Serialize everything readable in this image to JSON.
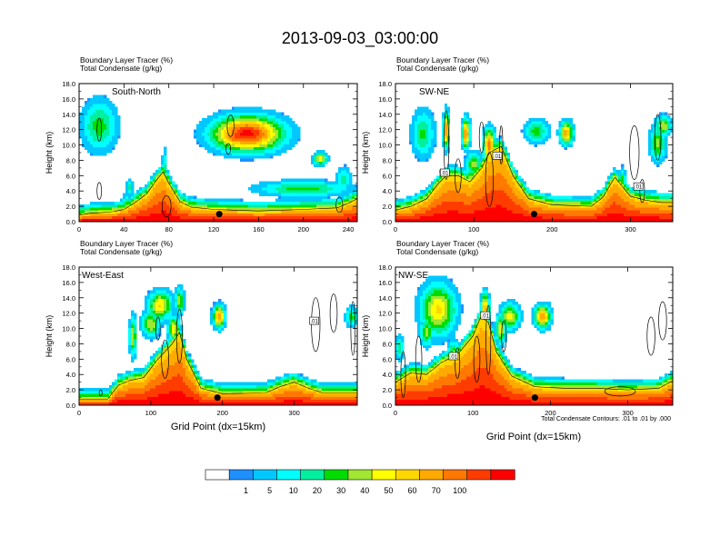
{
  "title": "2013-09-03_03:00:00",
  "variables": {
    "shaded": "Boundary Layer Tracer",
    "shaded_units": "(%)",
    "contour": "Total Condensate",
    "contour_units": "(g/kg)"
  },
  "ylabel": "Height (km)",
  "xlabel": "Grid Point (dx=15km)",
  "contour_info": "Total Condensate Contours: .01 to .01 by .000",
  "contour_label": ".01",
  "y_ticks": [
    "0.0",
    "2.0",
    "4.0",
    "6.0",
    "8.0",
    "10.0",
    "12.0",
    "14.0",
    "16.0",
    "18.0"
  ],
  "chart_data": [
    {
      "type": "heatmap",
      "panel": "South-North",
      "x_ticks": [
        0,
        40,
        80,
        120,
        160,
        200,
        240
      ],
      "xlim": [
        0,
        248
      ],
      "ylim": [
        0,
        18
      ],
      "bl": [
        [
          0,
          0.8
        ],
        [
          10,
          1.1
        ],
        [
          20,
          1.2
        ],
        [
          30,
          1.3
        ],
        [
          40,
          1.6
        ],
        [
          50,
          2.5
        ],
        [
          60,
          3.6
        ],
        [
          70,
          5.6
        ],
        [
          75,
          6.5
        ],
        [
          80,
          5.0
        ],
        [
          90,
          2.6
        ],
        [
          100,
          1.9
        ],
        [
          120,
          1.6
        ],
        [
          160,
          1.4
        ],
        [
          200,
          1.6
        ],
        [
          230,
          1.8
        ],
        [
          240,
          2.4
        ],
        [
          248,
          3.0
        ]
      ],
      "blobs": [
        [
          18,
          15,
          12.5,
          3.2,
          0.38
        ],
        [
          45,
          3,
          4.5,
          1.0,
          0.3
        ],
        [
          42,
          3,
          2.5,
          1.2,
          0.3
        ],
        [
          76,
          2,
          6.6,
          2.8,
          0.3
        ],
        [
          150,
          30,
          11.5,
          2.2,
          0.95
        ],
        [
          140,
          16,
          11.0,
          1.2,
          0.85
        ],
        [
          215,
          6,
          8.2,
          0.8,
          0.55
        ],
        [
          200,
          40,
          4.3,
          1.0,
          0.38
        ],
        [
          236,
          6,
          5.5,
          1.6,
          0.3
        ]
      ],
      "contours": [
        [
          18,
          12,
          2,
          1.5
        ],
        [
          135,
          12.5,
          3,
          1.4
        ],
        [
          133,
          9.5,
          2,
          0.7
        ],
        [
          18,
          4.0,
          2,
          1.1
        ],
        [
          78,
          2.0,
          4,
          1.4
        ],
        [
          232,
          2.2,
          3,
          1.0
        ]
      ],
      "boxes": [],
      "dot": [
        125,
        1.0
      ]
    },
    {
      "type": "heatmap",
      "panel": "SW-NE",
      "x_ticks": [
        0,
        100,
        200,
        300
      ],
      "xlim": [
        0,
        354
      ],
      "ylim": [
        0,
        18
      ],
      "bl": [
        [
          0,
          1.5
        ],
        [
          20,
          2.0
        ],
        [
          40,
          3.0
        ],
        [
          55,
          5.0
        ],
        [
          65,
          6.0
        ],
        [
          80,
          6.0
        ],
        [
          95,
          5.2
        ],
        [
          110,
          7.0
        ],
        [
          120,
          9.0
        ],
        [
          135,
          9.8
        ],
        [
          150,
          6.0
        ],
        [
          170,
          3.0
        ],
        [
          200,
          2.2
        ],
        [
          250,
          2.0
        ],
        [
          265,
          3.2
        ],
        [
          280,
          5.8
        ],
        [
          300,
          3.3
        ],
        [
          320,
          2.8
        ],
        [
          340,
          2.5
        ],
        [
          354,
          2.5
        ]
      ],
      "blobs": [
        [
          35,
          14,
          11.5,
          3.0,
          0.35
        ],
        [
          65,
          4,
          12.0,
          2.2,
          0.75
        ],
        [
          90,
          5,
          11.5,
          1.8,
          0.8
        ],
        [
          120,
          7,
          10.0,
          2.0,
          0.8
        ],
        [
          102,
          20,
          5.0,
          1.8,
          0.6
        ],
        [
          100,
          10,
          7.5,
          1.5,
          0.45
        ],
        [
          218,
          8,
          11.6,
          1.4,
          0.7
        ],
        [
          180,
          15,
          11.8,
          1.5,
          0.38
        ],
        [
          335,
          10,
          10.2,
          2.2,
          0.45
        ],
        [
          342,
          10,
          12.5,
          1.2,
          0.5
        ],
        [
          290,
          4,
          5.5,
          1.5,
          0.35
        ]
      ],
      "contours": [
        [
          65,
          10.0,
          3,
          4.5
        ],
        [
          80,
          6.0,
          4,
          2.2
        ],
        [
          120,
          5.5,
          5,
          3.5
        ],
        [
          135,
          10.0,
          2,
          2.5
        ],
        [
          110,
          11.0,
          3,
          2.0
        ],
        [
          305,
          9.0,
          6,
          3.5
        ],
        [
          335,
          11.0,
          4,
          3.0
        ],
        [
          315,
          4.0,
          3,
          1.5
        ]
      ],
      "boxes": [
        [
          63,
          6.4
        ],
        [
          130,
          8.6
        ],
        [
          310,
          4.6
        ]
      ],
      "dot": [
        177,
        1.0
      ]
    },
    {
      "type": "heatmap",
      "panel": "West-East",
      "x_ticks": [
        0,
        100,
        200,
        300
      ],
      "xlim": [
        0,
        388
      ],
      "ylim": [
        0,
        18
      ],
      "bl": [
        [
          0,
          0.8
        ],
        [
          40,
          0.8
        ],
        [
          55,
          2.6
        ],
        [
          70,
          3.2
        ],
        [
          90,
          3.6
        ],
        [
          110,
          6.0
        ],
        [
          130,
          8.0
        ],
        [
          140,
          9.5
        ],
        [
          150,
          6.0
        ],
        [
          170,
          2.2
        ],
        [
          200,
          1.5
        ],
        [
          260,
          1.6
        ],
        [
          280,
          2.4
        ],
        [
          300,
          3.0
        ],
        [
          320,
          2.2
        ],
        [
          340,
          1.6
        ],
        [
          388,
          1.6
        ]
      ],
      "blobs": [
        [
          113,
          16,
          13.0,
          1.8,
          0.6
        ],
        [
          140,
          6,
          13.6,
          1.6,
          0.5
        ],
        [
          100,
          12,
          10.6,
          1.6,
          0.5
        ],
        [
          75,
          5,
          9.0,
          2.4,
          0.5
        ],
        [
          132,
          8,
          10.0,
          1.6,
          0.55
        ],
        [
          195,
          8,
          11.6,
          1.4,
          0.75
        ],
        [
          380,
          8,
          11.5,
          1.2,
          0.38
        ],
        [
          295,
          35,
          2.5,
          1.0,
          0.3
        ]
      ],
      "contours": [
        [
          140,
          9.0,
          4,
          3.5
        ],
        [
          120,
          6.0,
          5,
          2.5
        ],
        [
          110,
          10.0,
          3,
          1.5
        ],
        [
          330,
          10.5,
          6,
          3.5
        ],
        [
          355,
          12.0,
          5,
          2.5
        ],
        [
          382,
          10.0,
          3,
          3.5
        ],
        [
          30,
          1.6,
          2,
          0.4
        ]
      ],
      "boxes": [
        [
          328,
          11.0
        ]
      ],
      "dot": [
        193,
        1.0
      ]
    },
    {
      "type": "heatmap",
      "panel": "NW-SE",
      "x_ticks": [
        0,
        100,
        200,
        300
      ],
      "xlim": [
        0,
        358
      ],
      "ylim": [
        0,
        18
      ],
      "bl": [
        [
          0,
          3.0
        ],
        [
          20,
          4.2
        ],
        [
          40,
          4.0
        ],
        [
          60,
          5.6
        ],
        [
          80,
          6.6
        ],
        [
          100,
          9.0
        ],
        [
          110,
          11.5
        ],
        [
          120,
          10.8
        ],
        [
          130,
          7.0
        ],
        [
          150,
          3.8
        ],
        [
          180,
          2.4
        ],
        [
          220,
          2.2
        ],
        [
          260,
          2.2
        ],
        [
          300,
          2.0
        ],
        [
          340,
          2.2
        ],
        [
          358,
          3.2
        ]
      ],
      "blobs": [
        [
          55,
          22,
          12.5,
          3.2,
          0.6
        ],
        [
          40,
          8,
          9.6,
          1.8,
          0.45
        ],
        [
          75,
          8,
          6.6,
          1.8,
          0.45
        ],
        [
          116,
          5,
          12.5,
          2.0,
          0.75
        ],
        [
          136,
          6,
          10.0,
          1.8,
          0.55
        ],
        [
          148,
          12,
          11.6,
          1.6,
          0.55
        ],
        [
          190,
          10,
          11.6,
          1.4,
          0.75
        ],
        [
          5,
          6,
          7.5,
          1.5,
          0.3
        ],
        [
          115,
          15,
          8.5,
          2.0,
          0.4
        ]
      ],
      "contours": [
        [
          30,
          6.0,
          4,
          3.0
        ],
        [
          120,
          8.5,
          3,
          4.5
        ],
        [
          105,
          6.0,
          4,
          3.0
        ],
        [
          80,
          5.5,
          3,
          2.0
        ],
        [
          140,
          9.0,
          3,
          2.0
        ],
        [
          290,
          1.8,
          20,
          0.6
        ],
        [
          330,
          9.0,
          5,
          2.5
        ],
        [
          345,
          11.0,
          5,
          2.5
        ],
        [
          10,
          4.0,
          3,
          3.0
        ]
      ],
      "boxes": [
        [
          116,
          11.7
        ],
        [
          75,
          6.4
        ]
      ],
      "dot": [
        180,
        1.0
      ]
    }
  ],
  "colorbar": {
    "labels": [
      "1",
      "5",
      "10",
      "20",
      "30",
      "40",
      "50",
      "60",
      "70",
      "100"
    ],
    "colors": [
      "#ffffff",
      "#1e90ff",
      "#00c8ff",
      "#00ffff",
      "#00f0a0",
      "#00dc00",
      "#a0e632",
      "#ffff00",
      "#ffd700",
      "#ffaa00",
      "#ff7800",
      "#ff3c00",
      "#ff0000"
    ]
  }
}
